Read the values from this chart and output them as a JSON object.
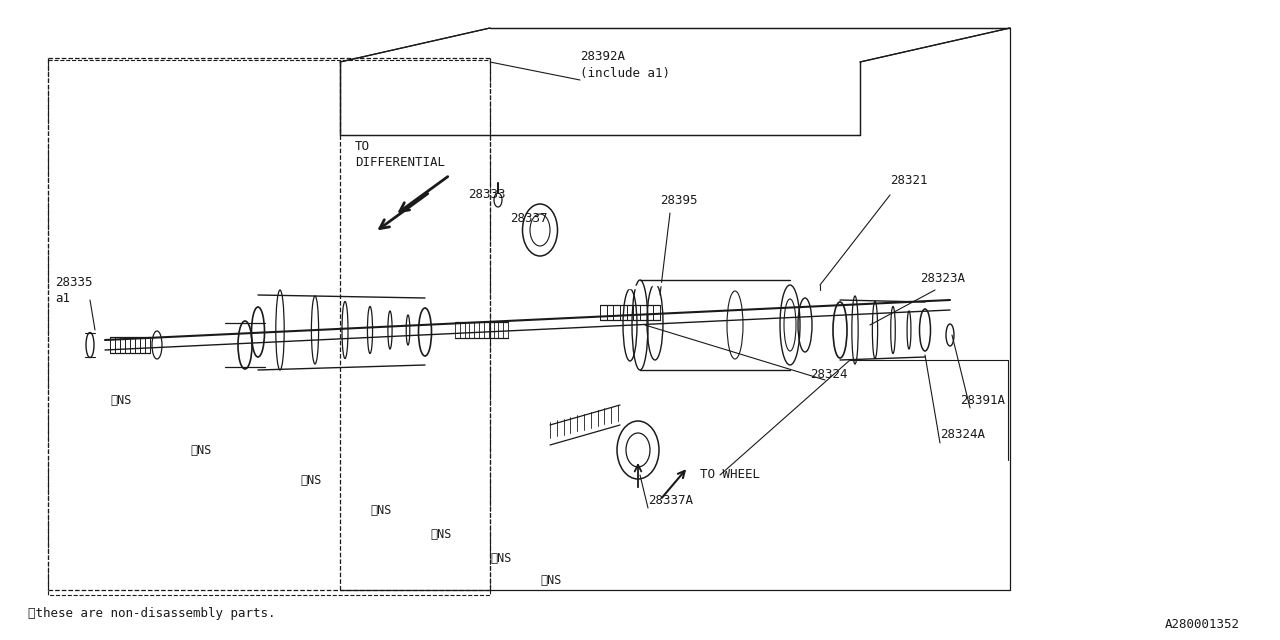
{
  "bg_color": "#ffffff",
  "line_color": "#1a1a1a",
  "footer_note": "※these are non-disassembly parts.",
  "part_id": "A280001352",
  "labels": {
    "28335_a1": "28335\na1",
    "28333": "28333",
    "28337": "28337",
    "28392A": "28392A\n(include a1)",
    "28395": "28395",
    "28321": "28321",
    "28323A": "28323A",
    "28324": "28324",
    "28324A": "28324A",
    "28391A": "28391A",
    "28337A": "28337A",
    "TO_DIFF": "TO\nDIFFERENTIAL",
    "TO_WHEEL": "TO WHEEL"
  }
}
